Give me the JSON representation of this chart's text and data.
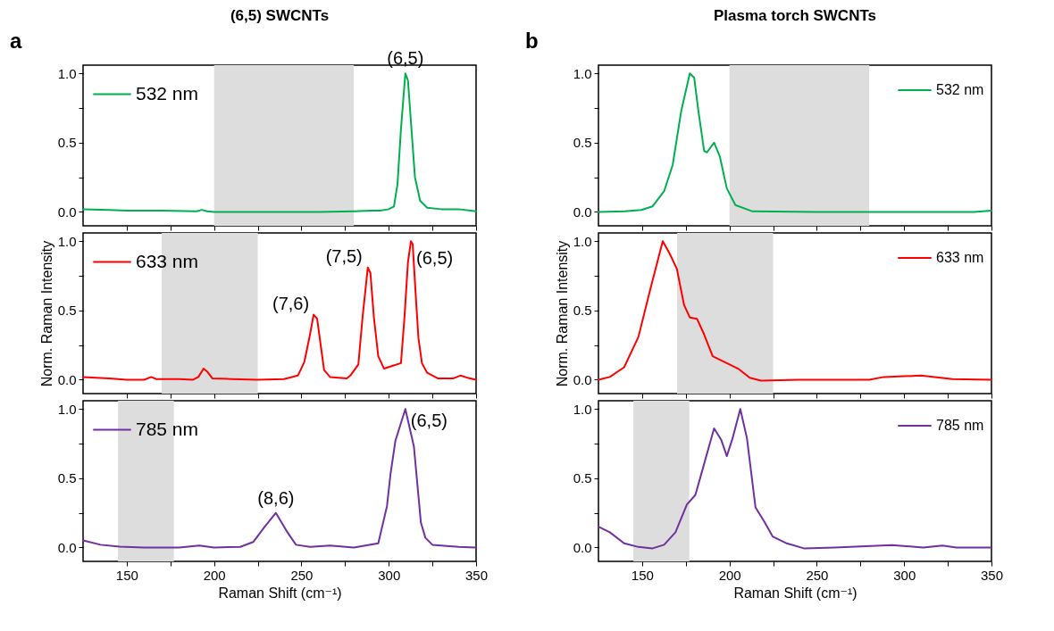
{
  "chart_data": [
    {
      "type": "line",
      "title": "(6,5) SWCNTs",
      "annotations": [
        "a",
        {
          "text": "(6,5)",
          "x": 309.5,
          "y": 1.0
        }
      ],
      "tick_labels": "y",
      "legend": "top left",
      "xlim": [
        125,
        350
      ],
      "ylim": [
        -0.1,
        1.06
      ],
      "xticks": [
        150,
        {
          "value": 175,
          "label": null
        },
        200,
        {
          "value": 225,
          "label": null
        },
        250,
        {
          "value": 275,
          "label": null
        },
        300,
        {
          "value": 325,
          "label": null
        },
        350
      ],
      "yticks": [
        {
          "value": 0,
          "label": "0.0"
        },
        {
          "value": 0.25,
          "label": null
        },
        {
          "value": 0.5,
          "label": "0.5"
        },
        {
          "value": 0.75,
          "label": null
        },
        {
          "value": 1,
          "label": "1.0"
        }
      ],
      "bands": [
        {
          "axis": "x",
          "from": 200,
          "to": 280,
          "color": "#dddddd"
        }
      ],
      "x": [
        125,
        140,
        150,
        170,
        190,
        193,
        196,
        200,
        220,
        240,
        260,
        280,
        290,
        295,
        300,
        303,
        305,
        307,
        309.5,
        311,
        313,
        315,
        318,
        322,
        330,
        340,
        350
      ],
      "series": [
        {
          "name": "532 nm",
          "color": "#00b050",
          "values": [
            0.02,
            0.015,
            0.01,
            0.01,
            0.005,
            0.015,
            0.005,
            0.0,
            0.0,
            0.0,
            0.0,
            0.005,
            0.01,
            0.01,
            0.02,
            0.04,
            0.2,
            0.6,
            1.0,
            0.95,
            0.6,
            0.25,
            0.08,
            0.03,
            0.02,
            0.02,
            0.005
          ]
        }
      ]
    },
    {
      "type": "line",
      "ylabel": "Norm. Raman Intensity",
      "annotations": [
        {
          "text": "(7,6)",
          "x": 257,
          "y": 0.47
        },
        {
          "text": "(7,5)",
          "x": 288,
          "y": 0.81
        },
        {
          "text": "(6,5)",
          "x": 312.7,
          "y": 1.0
        }
      ],
      "tick_labels": "y",
      "legend": "top left",
      "xlim": [
        125,
        350
      ],
      "ylim": [
        -0.1,
        1.06
      ],
      "xticks": [
        150,
        {
          "value": 175,
          "label": null
        },
        200,
        {
          "value": 225,
          "label": null
        },
        250,
        {
          "value": 275,
          "label": null
        },
        300,
        {
          "value": 325,
          "label": null
        },
        350
      ],
      "yticks": [
        {
          "value": 0,
          "label": "0.0"
        },
        {
          "value": 0.25,
          "label": null
        },
        {
          "value": 0.5,
          "label": "0.5"
        },
        {
          "value": 0.75,
          "label": null
        },
        {
          "value": 1,
          "label": "1.0"
        }
      ],
      "bands": [
        {
          "axis": "x",
          "from": 170,
          "to": 225,
          "color": "#dddddd"
        }
      ],
      "x": [
        125,
        140,
        150,
        160,
        164,
        167,
        180,
        188,
        191,
        194,
        196,
        199,
        210,
        225,
        240,
        248,
        251.7,
        254.5,
        257,
        259,
        260.5,
        263,
        266.4,
        276,
        278,
        282.6,
        285,
        288,
        289.5,
        291.5,
        294,
        297.3,
        302,
        307,
        309,
        311,
        312.7,
        313.7,
        315.5,
        317,
        319,
        322,
        328,
        337,
        341,
        345,
        350
      ],
      "series": [
        {
          "name": "633 nm",
          "color": "#ff0000",
          "values": [
            0.02,
            0.01,
            0.0,
            0.0,
            0.02,
            0.005,
            0.005,
            0.0,
            0.02,
            0.08,
            0.06,
            0.01,
            0.005,
            0.0,
            0.005,
            0.03,
            0.13,
            0.3,
            0.47,
            0.44,
            0.3,
            0.07,
            0.02,
            0.01,
            0.03,
            0.11,
            0.45,
            0.81,
            0.77,
            0.45,
            0.17,
            0.08,
            0.1,
            0.12,
            0.45,
            0.85,
            1.0,
            0.98,
            0.6,
            0.3,
            0.12,
            0.05,
            0.01,
            0.01,
            0.03,
            0.015,
            0.0
          ]
        }
      ]
    },
    {
      "type": "line",
      "xlabel": "Raman Shift (cm⁻¹)",
      "annotations": [
        {
          "text": "(8,6)",
          "x": 235.4,
          "y": 0.25
        },
        {
          "text": "(6,5)",
          "x": 309.5,
          "y": 1.0
        }
      ],
      "legend": "top left",
      "xlim": [
        125,
        350
      ],
      "ylim": [
        -0.1,
        1.06
      ],
      "xticks": [
        150,
        {
          "value": 175,
          "label": null
        },
        200,
        {
          "value": 225,
          "label": null
        },
        250,
        {
          "value": 275,
          "label": null
        },
        300,
        {
          "value": 325,
          "label": null
        },
        350
      ],
      "yticks": [
        {
          "value": 0,
          "label": "0.0"
        },
        {
          "value": 0.25,
          "label": null
        },
        {
          "value": 0.5,
          "label": "0.5"
        },
        {
          "value": 0.75,
          "label": null
        },
        {
          "value": 1,
          "label": "1.0"
        }
      ],
      "bands": [
        {
          "axis": "x",
          "from": 145,
          "to": 177,
          "color": "#dddddd"
        }
      ],
      "x": [
        125,
        135,
        146,
        160,
        180,
        191.5,
        200,
        215,
        222.4,
        229,
        235.4,
        242,
        246.9,
        255,
        266.4,
        280,
        294,
        299,
        301,
        303.8,
        309.5,
        314.4,
        318.4,
        321,
        325,
        340,
        350
      ],
      "series": [
        {
          "name": "785 nm",
          "color": "#7030a0",
          "values": [
            0.052,
            0.02,
            0.006,
            0.0,
            0.0,
            0.015,
            0.0,
            0.005,
            0.04,
            0.15,
            0.25,
            0.11,
            0.02,
            0.005,
            0.014,
            0.0,
            0.03,
            0.3,
            0.53,
            0.77,
            1.0,
            0.73,
            0.18,
            0.07,
            0.02,
            0.005,
            0.0
          ]
        }
      ]
    },
    {
      "type": "line",
      "title": "Plasma torch SWCNTs",
      "annotations": [
        "b"
      ],
      "tick_labels": "y",
      "legend": "top right",
      "xlim": [
        125,
        350
      ],
      "ylim": [
        -0.1,
        1.06
      ],
      "xticks": [
        150,
        {
          "value": 175,
          "label": null
        },
        200,
        {
          "value": 225,
          "label": null
        },
        250,
        {
          "value": 275,
          "label": null
        },
        300,
        {
          "value": 325,
          "label": null
        },
        350
      ],
      "yticks": [
        {
          "value": 0,
          "label": "0.0"
        },
        {
          "value": 0.25,
          "label": null
        },
        {
          "value": 0.5,
          "label": "0.5"
        },
        {
          "value": 0.75,
          "label": null
        },
        {
          "value": 1,
          "label": "1.0"
        }
      ],
      "bands": [
        {
          "axis": "x",
          "from": 200,
          "to": 280,
          "color": "#dddddd"
        }
      ],
      "x": [
        125,
        140,
        149.5,
        155.9,
        162.6,
        167.5,
        172.4,
        177.3,
        179.8,
        182.2,
        185.5,
        187.1,
        191.2,
        194.5,
        198.5,
        203.4,
        213.2,
        250,
        300,
        340,
        350
      ],
      "series": [
        {
          "name": "532 nm",
          "color": "#00b050",
          "values": [
            0.0,
            0.005,
            0.014,
            0.04,
            0.15,
            0.34,
            0.73,
            1.0,
            0.97,
            0.73,
            0.44,
            0.43,
            0.5,
            0.4,
            0.17,
            0.05,
            0.004,
            0.0,
            0.0,
            0.0,
            0.01
          ]
        }
      ]
    },
    {
      "type": "line",
      "ylabel": "Norm. Raman Intensity",
      "tick_labels": "y",
      "legend": "top right",
      "xlim": [
        125,
        350
      ],
      "ylim": [
        -0.1,
        1.06
      ],
      "xticks": [
        150,
        {
          "value": 175,
          "label": null
        },
        200,
        {
          "value": 225,
          "label": null
        },
        250,
        {
          "value": 275,
          "label": null
        },
        300,
        {
          "value": 325,
          "label": null
        },
        350
      ],
      "yticks": [
        {
          "value": 0,
          "label": "0.0"
        },
        {
          "value": 0.25,
          "label": null
        },
        {
          "value": 0.5,
          "label": "0.5"
        },
        {
          "value": 0.75,
          "label": null
        },
        {
          "value": 1,
          "label": "1.0"
        }
      ],
      "bands": [
        {
          "axis": "x",
          "from": 170,
          "to": 225,
          "color": "#dddddd"
        }
      ],
      "x": [
        125,
        131.5,
        139.7,
        147.9,
        154.4,
        161.8,
        165.8,
        169.9,
        174,
        177.3,
        181.4,
        185.4,
        190.4,
        196.9,
        205,
        211.6,
        218.1,
        240,
        280,
        288.4,
        309.6,
        327.6,
        350
      ],
      "series": [
        {
          "name": "633 nm",
          "color": "#ff0000",
          "values": [
            0.0,
            0.02,
            0.09,
            0.31,
            0.64,
            1.0,
            0.91,
            0.8,
            0.54,
            0.45,
            0.44,
            0.33,
            0.17,
            0.13,
            0.08,
            0.014,
            -0.006,
            0.0,
            0.0,
            0.02,
            0.03,
            0.004,
            0.0
          ]
        }
      ]
    },
    {
      "type": "line",
      "xlabel": "Raman Shift (cm⁻¹)",
      "legend": "top right",
      "xlim": [
        125,
        350
      ],
      "ylim": [
        -0.1,
        1.06
      ],
      "xticks": [
        150,
        {
          "value": 175,
          "label": null
        },
        200,
        {
          "value": 225,
          "label": null
        },
        250,
        {
          "value": 275,
          "label": null
        },
        300,
        {
          "value": 325,
          "label": null
        },
        350
      ],
      "yticks": [
        {
          "value": 0,
          "label": "0.0"
        },
        {
          "value": 0.25,
          "label": null
        },
        {
          "value": 0.5,
          "label": "0.5"
        },
        {
          "value": 0.75,
          "label": null
        },
        {
          "value": 1,
          "label": "1.0"
        }
      ],
      "bands": [
        {
          "axis": "x",
          "from": 145,
          "to": 177,
          "color": "#dddddd"
        }
      ],
      "x": [
        125,
        131.5,
        139.7,
        147.9,
        156,
        162.6,
        169.1,
        175.6,
        180.5,
        185.4,
        191.2,
        195.2,
        198.5,
        201.8,
        206.2,
        210,
        214.9,
        219.8,
        224.7,
        232.8,
        242.6,
        260,
        293,
        311,
        321.9,
        330,
        350
      ],
      "series": [
        {
          "name": "785 nm",
          "color": "#7030a0",
          "values": [
            0.15,
            0.11,
            0.03,
            0.004,
            -0.006,
            0.02,
            0.11,
            0.31,
            0.38,
            0.6,
            0.86,
            0.78,
            0.66,
            0.79,
            1.0,
            0.79,
            0.29,
            0.19,
            0.08,
            0.03,
            -0.006,
            0.0,
            0.018,
            0.0,
            0.014,
            0.0,
            0.0
          ]
        }
      ]
    }
  ]
}
